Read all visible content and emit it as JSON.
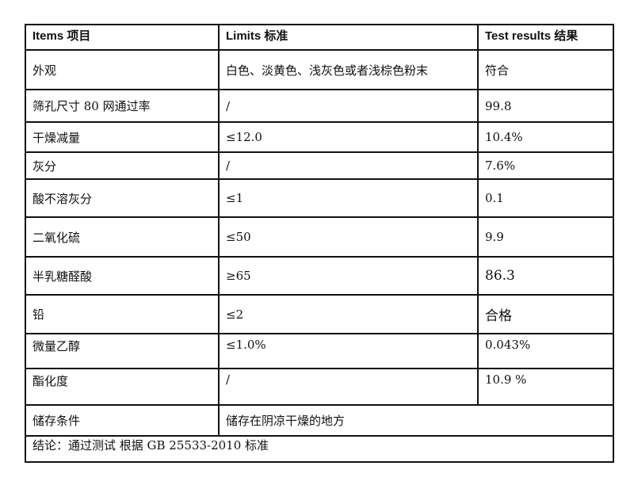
{
  "table": {
    "headers": [
      "Items 项目",
      "Limits 标准",
      "Test results 结果"
    ],
    "rows": [
      {
        "item": "外观",
        "limit": "白色、淡黄色、浅灰色或者浅棕色粉末",
        "result": "符合"
      },
      {
        "item": "筛孔尺寸 80 网通过率",
        "limit": "/",
        "result": "99.8"
      },
      {
        "item": "干燥减量",
        "limit": "≤12.0",
        "result": "10.4%"
      },
      {
        "item": "灰分",
        "limit": "/",
        "result": "7.6%"
      },
      {
        "item": "酸不溶灰分",
        "limit": "≤1",
        "result": "0.1"
      },
      {
        "item": "二氧化硫",
        "limit": "≤50",
        "result": "9.9"
      },
      {
        "item": "半乳糖醛酸",
        "limit": "≥65",
        "result": "86.3"
      },
      {
        "item": "铅",
        "limit": "≤2",
        "result": "合格"
      },
      {
        "item": "微量乙醇",
        "limit": "≤1.0%",
        "result": "0.043%"
      },
      {
        "item": "酯化度",
        "limit": "/",
        "result": "10.9 %"
      }
    ],
    "storage": {
      "item": "储存条件",
      "value": "储存在阴凉干燥的地方"
    },
    "conclusion": "结论：通过测试 根据 GB 25533-2010 标准"
  }
}
